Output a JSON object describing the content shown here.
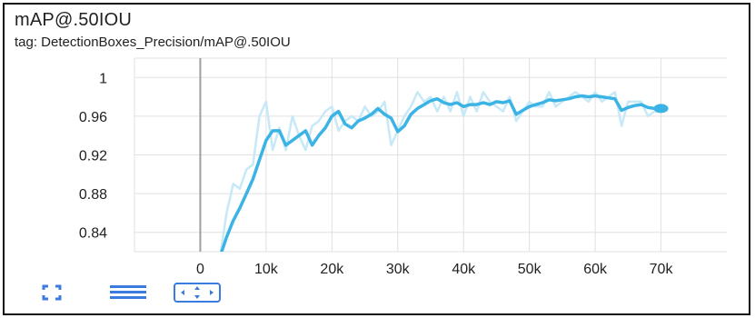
{
  "card": {
    "title": "mAP@.50IOU",
    "subtitle": "tag: DetectionBoxes_Precision/mAP@.50IOU"
  },
  "controls": [
    {
      "name": "fullscreen-icon"
    },
    {
      "name": "toggle-y-log-icon"
    },
    {
      "name": "fit-domain-icon"
    }
  ],
  "colors": {
    "smoothed": "#3bb4e5",
    "raw": "#c7e9f7",
    "grid": "#e0e0e0",
    "zero_line": "#9e9e9e"
  },
  "chart_data": {
    "type": "line",
    "xlabel": "",
    "ylabel": "",
    "xlim": [
      -10000,
      80000
    ],
    "ylim": [
      0.82,
      1.02
    ],
    "x_ticks": [
      "0",
      "10k",
      "20k",
      "30k",
      "40k",
      "50k",
      "60k",
      "70k"
    ],
    "x_tick_values": [
      0,
      10000,
      20000,
      30000,
      40000,
      50000,
      60000,
      70000
    ],
    "y_ticks": [
      "0.84",
      "0.88",
      "0.92",
      "0.96",
      "1"
    ],
    "y_tick_values": [
      0.84,
      0.88,
      0.92,
      0.96,
      1.0
    ],
    "grid": true,
    "series": [
      {
        "values_x": [
          3000,
          4000,
          5000,
          6000,
          7000,
          8000,
          9000,
          10000,
          11000,
          12000,
          13000,
          14000,
          15000,
          16000,
          17000,
          18000,
          19000,
          20000,
          21000,
          22000,
          23000,
          24000,
          25000,
          26000,
          27000,
          28000,
          29000,
          30000,
          31000,
          32000,
          33000,
          34000,
          35000,
          36000,
          37000,
          38000,
          39000,
          40000,
          41000,
          42000,
          43000,
          44000,
          45000,
          46000,
          47000,
          48000,
          49000,
          50000,
          51000,
          52000,
          53000,
          54000,
          55000,
          56000,
          57000,
          58000,
          59000,
          60000,
          61000,
          62000,
          63000,
          64000,
          65000,
          66000,
          67000,
          68000,
          69000,
          70000
        ],
        "values_y": [
          0.815,
          0.86,
          0.89,
          0.885,
          0.905,
          0.91,
          0.96,
          0.975,
          0.925,
          0.948,
          0.925,
          0.96,
          0.94,
          0.925,
          0.95,
          0.955,
          0.965,
          0.97,
          0.945,
          0.955,
          0.96,
          0.955,
          0.97,
          0.96,
          0.965,
          0.975,
          0.93,
          0.945,
          0.96,
          0.97,
          0.985,
          0.975,
          0.98,
          0.965,
          0.98,
          0.965,
          0.985,
          0.96,
          0.98,
          0.965,
          0.985,
          0.975,
          0.97,
          0.965,
          0.98,
          0.955,
          0.965,
          0.975,
          0.97,
          0.97,
          0.985,
          0.97,
          0.975,
          0.98,
          0.985,
          0.98,
          0.975,
          0.985,
          0.975,
          0.98,
          0.985,
          0.95,
          0.975,
          0.975,
          0.975,
          0.96,
          0.965,
          0.965
        ]
      },
      {
        "values_x": [
          3000,
          4000,
          5000,
          6000,
          7000,
          8000,
          9000,
          10000,
          11000,
          12000,
          13000,
          14000,
          15000,
          16000,
          17000,
          18000,
          19000,
          20000,
          21000,
          22000,
          23000,
          24000,
          25000,
          26000,
          27000,
          28000,
          29000,
          30000,
          31000,
          32000,
          33000,
          34000,
          35000,
          36000,
          37000,
          38000,
          39000,
          40000,
          41000,
          42000,
          43000,
          44000,
          45000,
          46000,
          47000,
          48000,
          49000,
          50000,
          51000,
          52000,
          53000,
          54000,
          55000,
          56000,
          57000,
          58000,
          59000,
          60000,
          61000,
          62000,
          63000,
          64000,
          65000,
          66000,
          67000,
          68000,
          69000,
          70000
        ],
        "values_y": [
          0.815,
          0.835,
          0.852,
          0.865,
          0.88,
          0.895,
          0.915,
          0.935,
          0.945,
          0.945,
          0.93,
          0.935,
          0.94,
          0.945,
          0.93,
          0.94,
          0.948,
          0.96,
          0.965,
          0.952,
          0.948,
          0.955,
          0.958,
          0.962,
          0.968,
          0.962,
          0.958,
          0.944,
          0.95,
          0.962,
          0.968,
          0.972,
          0.976,
          0.978,
          0.974,
          0.972,
          0.974,
          0.97,
          0.972,
          0.972,
          0.974,
          0.972,
          0.975,
          0.974,
          0.976,
          0.962,
          0.966,
          0.97,
          0.972,
          0.974,
          0.977,
          0.976,
          0.977,
          0.978,
          0.98,
          0.981,
          0.98,
          0.981,
          0.98,
          0.979,
          0.978,
          0.966,
          0.969,
          0.971,
          0.972,
          0.969,
          0.968,
          0.968
        ]
      }
    ]
  }
}
